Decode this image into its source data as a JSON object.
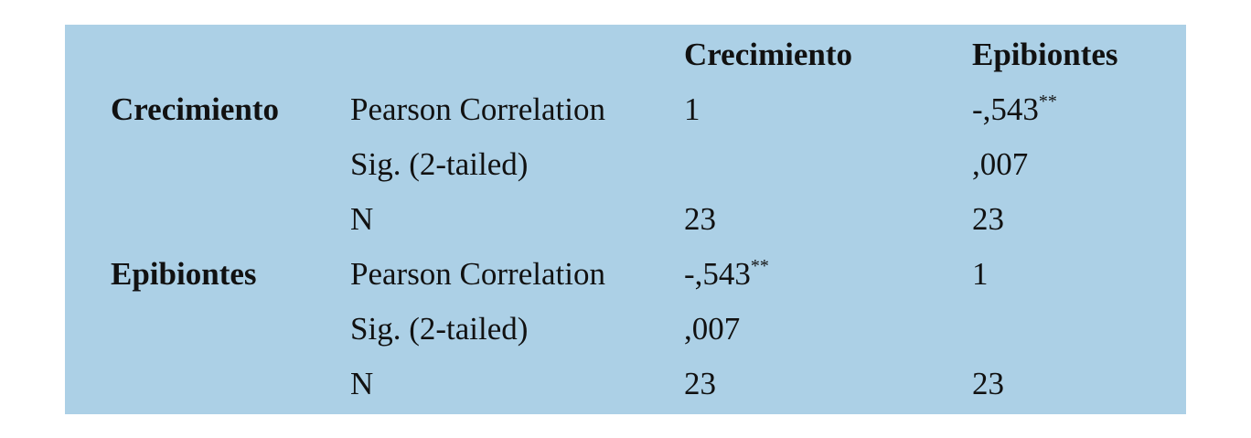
{
  "table": {
    "columns": [
      "Crecimiento",
      "Epibiontes"
    ],
    "groups": [
      {
        "name": "Crecimiento",
        "rows": [
          {
            "stat": "Pearson Correlation",
            "cells": [
              {
                "text": "1"
              },
              {
                "text": "-,543",
                "sup": "**"
              }
            ]
          },
          {
            "stat": "Sig. (2-tailed)",
            "cells": [
              null,
              {
                "text": ",007"
              }
            ]
          },
          {
            "stat": "N",
            "cells": [
              {
                "text": "23"
              },
              {
                "text": "23"
              }
            ]
          }
        ]
      },
      {
        "name": "Epibiontes",
        "rows": [
          {
            "stat": "Pearson Correlation",
            "cells": [
              {
                "text": "-,543",
                "sup": "**"
              },
              {
                "text": "1"
              }
            ]
          },
          {
            "stat": "Sig. (2-tailed)",
            "cells": [
              {
                "text": ",007"
              },
              null
            ]
          },
          {
            "stat": "N",
            "cells": [
              {
                "text": "23"
              },
              {
                "text": "23"
              }
            ]
          }
        ]
      }
    ]
  }
}
